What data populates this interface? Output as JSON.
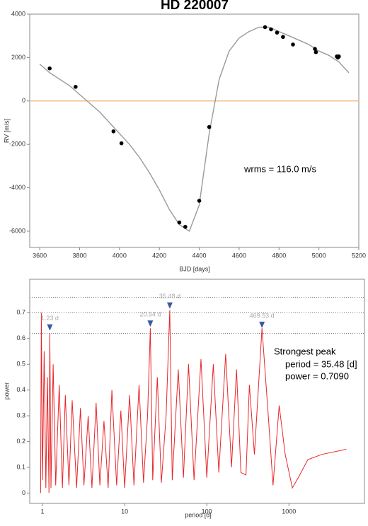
{
  "chart_data": [
    {
      "type": "scatter",
      "title": "HD 220007",
      "xlabel": "BJD [days]",
      "ylabel": "RV [m/s]",
      "annotation": "wrms = 116.0 m/s",
      "x": [
        3650,
        3780,
        3970,
        4010,
        4300,
        4330,
        4400,
        4450,
        4730,
        4760,
        4790,
        4820,
        4870,
        4980,
        4985,
        5090,
        5095,
        5100
      ],
      "values": [
        1500,
        650,
        -1400,
        -1950,
        -5600,
        -5800,
        -4600,
        -1200,
        3400,
        3300,
        3150,
        2950,
        2600,
        2400,
        2250,
        2050,
        2000,
        2050
      ],
      "color": "#000000",
      "model": {
        "color": "#999999",
        "x": [
          3600,
          3650,
          3700,
          3750,
          3800,
          3850,
          3900,
          3950,
          4000,
          4050,
          4100,
          4150,
          4200,
          4250,
          4300,
          4350,
          4400,
          4450,
          4500,
          4550,
          4600,
          4650,
          4700,
          4750,
          4800,
          4850,
          4900,
          4950,
          5000,
          5050,
          5100,
          5150
        ],
        "values": [
          1700,
          1300,
          1000,
          700,
          300,
          -100,
          -500,
          -1000,
          -1500,
          -2000,
          -2600,
          -3300,
          -4100,
          -5000,
          -5700,
          -6000,
          -4800,
          -1500,
          1000,
          2300,
          2900,
          3200,
          3400,
          3400,
          3200,
          3000,
          2800,
          2600,
          2300,
          2100,
          1800,
          1300
        ]
      },
      "hline": 0,
      "hline_color": "#f5c08a",
      "xlim": [
        3550,
        5200
      ],
      "xticks": [
        3600,
        3800,
        4000,
        4200,
        4400,
        4600,
        4800,
        5000,
        5200
      ],
      "ylim": [
        -6750,
        4000
      ],
      "yticks": [
        -6000,
        -4000,
        -2000,
        0,
        2000,
        4000
      ]
    },
    {
      "type": "line",
      "xlabel": "period [d]",
      "ylabel": "power",
      "log_x": true,
      "color": "#e8262a",
      "annotation": [
        "Strongest peak",
        "period = 35.48 [d]",
        "power = 0.7090"
      ],
      "x": [
        0.95,
        0.97,
        1.0,
        1.05,
        1.1,
        1.15,
        1.2,
        1.23,
        1.27,
        1.35,
        1.45,
        1.6,
        1.75,
        1.9,
        2.1,
        2.3,
        2.6,
        2.9,
        3.2,
        3.6,
        4,
        4.5,
        5,
        5.6,
        6.3,
        7,
        8,
        9,
        10,
        11.5,
        13,
        15,
        17,
        19,
        20.54,
        22,
        25,
        28,
        32,
        35.48,
        38,
        45,
        52,
        60,
        70,
        85,
        100,
        120,
        140,
        170,
        200,
        230,
        260,
        300,
        330,
        380,
        469.53,
        560,
        640,
        760,
        900,
        1100,
        1300,
        1700,
        2500,
        5000
      ],
      "values": [
        0,
        0.7,
        0.05,
        0.55,
        0.02,
        0.45,
        0.0,
        0.62,
        0.02,
        0.5,
        0.03,
        0.42,
        0.02,
        0.38,
        0.03,
        0.36,
        0.02,
        0.33,
        0.03,
        0.3,
        0.02,
        0.35,
        0.03,
        0.28,
        0.02,
        0.4,
        0.03,
        0.32,
        0.02,
        0.38,
        0.03,
        0.42,
        0.04,
        0.3,
        0.64,
        0.05,
        0.45,
        0.04,
        0.3,
        0.71,
        0.05,
        0.48,
        0.06,
        0.5,
        0.05,
        0.52,
        0.06,
        0.5,
        0.08,
        0.54,
        0.1,
        0.48,
        0.08,
        0.07,
        0.42,
        0.15,
        0.64,
        0.3,
        0.03,
        0.34,
        0.15,
        0.02,
        0.06,
        0.13,
        0.15,
        0.17
      ],
      "thresholds": [
        0.62,
        0.7,
        0.76
      ],
      "peaks": [
        {
          "x": 1.23,
          "y": 0.625,
          "label": "1.23 d"
        },
        {
          "x": 20.54,
          "y": 0.64,
          "label": "20.54 d"
        },
        {
          "x": 35.48,
          "y": 0.71,
          "label": "35.48 d"
        },
        {
          "x": 469.53,
          "y": 0.635,
          "label": "469.53 d"
        }
      ],
      "peak_color": "#3a5a9c",
      "xlim": [
        0.7,
        8300
      ],
      "xticks": [
        1,
        10,
        100,
        1000
      ],
      "ylim": [
        -0.04,
        0.83
      ],
      "yticks": [
        0,
        0.1,
        0.2,
        0.3,
        0.4,
        0.5,
        0.6,
        0.7
      ]
    }
  ]
}
